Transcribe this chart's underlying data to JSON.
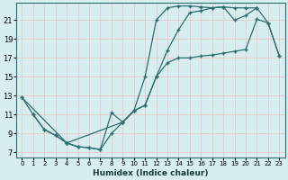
{
  "xlabel": "Humidex (Indice chaleur)",
  "bg_color": "#d6eef0",
  "grid_color": "#c8e0e4",
  "line_color": "#2d6e6e",
  "xlim": [
    -0.5,
    23.5
  ],
  "ylim": [
    6.5,
    22.8
  ],
  "xticks": [
    0,
    1,
    2,
    3,
    4,
    5,
    6,
    7,
    8,
    9,
    10,
    11,
    12,
    13,
    14,
    15,
    16,
    17,
    18,
    19,
    20,
    21,
    22,
    23
  ],
  "yticks": [
    7,
    9,
    11,
    13,
    15,
    17,
    19,
    21
  ],
  "curve1_x": [
    0,
    1,
    2,
    3,
    4,
    5,
    6,
    7,
    8,
    9,
    10,
    11,
    12,
    13,
    14,
    15,
    16,
    17,
    18,
    19,
    20,
    21
  ],
  "curve1_y": [
    12.8,
    11.0,
    9.4,
    8.8,
    8.0,
    7.6,
    7.5,
    7.3,
    11.2,
    10.2,
    11.4,
    15.0,
    21.0,
    22.3,
    22.5,
    22.5,
    22.4,
    22.3,
    22.4,
    22.3,
    22.3,
    22.3
  ],
  "curve2_x": [
    1,
    2,
    3,
    4,
    5,
    6,
    7,
    8,
    9,
    10,
    11,
    12,
    13,
    14,
    15,
    16,
    17,
    18,
    19,
    20,
    21,
    22,
    23
  ],
  "curve2_y": [
    11.0,
    9.4,
    8.8,
    8.0,
    7.6,
    7.5,
    7.3,
    9.0,
    10.2,
    11.4,
    12.0,
    15.0,
    16.5,
    17.0,
    17.0,
    17.2,
    17.3,
    17.5,
    17.7,
    17.9,
    21.1,
    20.7,
    17.2
  ],
  "curve3_x": [
    0,
    4,
    9,
    10,
    11,
    12,
    13,
    14,
    15,
    16,
    17,
    18,
    19,
    20,
    21,
    22,
    23
  ],
  "curve3_y": [
    12.8,
    8.0,
    10.2,
    11.4,
    12.0,
    15.0,
    17.8,
    20.0,
    21.8,
    22.0,
    22.3,
    22.4,
    21.0,
    21.5,
    22.3,
    20.7,
    17.2
  ]
}
